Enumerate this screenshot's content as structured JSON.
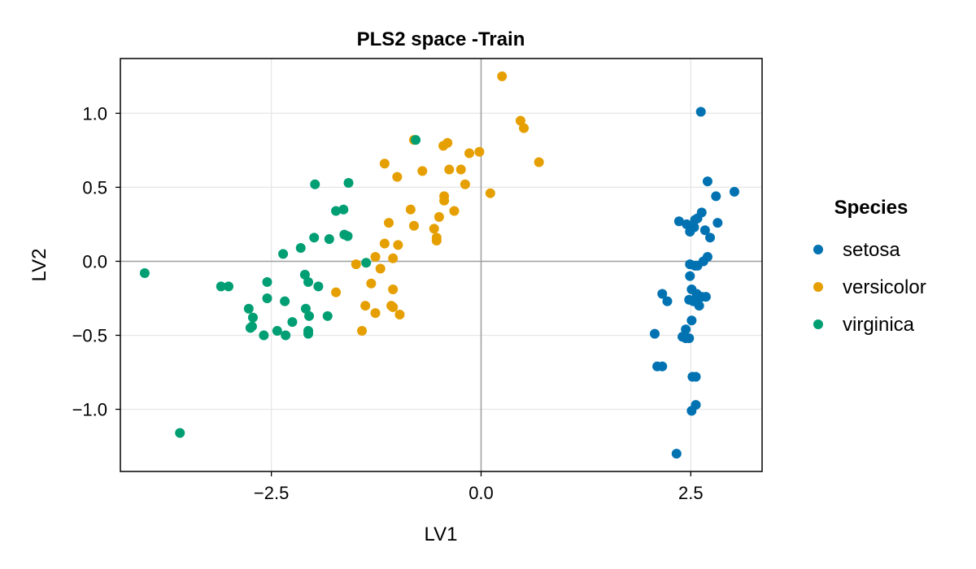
{
  "chart_data": {
    "type": "scatter",
    "title": "PLS2 space -Train",
    "xlabel": "LV1",
    "ylabel": "LV2",
    "xlim": [
      -4.3,
      3.35
    ],
    "ylim": [
      -1.42,
      1.37
    ],
    "xticks": [
      -2.5,
      0.0,
      2.5
    ],
    "xtick_labels": [
      "−2.5",
      "0.0",
      "2.5"
    ],
    "yticks": [
      -1.0,
      -0.5,
      0.0,
      0.5,
      1.0
    ],
    "ytick_labels": [
      "−1.0",
      "−0.5",
      "0.0",
      "0.5",
      "1.0"
    ],
    "grid": true,
    "zero_lines": true,
    "legend": {
      "title": "Species",
      "position": "right"
    },
    "series": [
      {
        "name": "setosa",
        "color": "#0072b2",
        "points": [
          [
            2.62,
            1.01
          ],
          [
            2.7,
            0.54
          ],
          [
            3.02,
            0.47
          ],
          [
            2.8,
            0.44
          ],
          [
            2.63,
            0.33
          ],
          [
            2.58,
            0.29
          ],
          [
            2.55,
            0.28
          ],
          [
            2.36,
            0.27
          ],
          [
            2.82,
            0.26
          ],
          [
            2.45,
            0.25
          ],
          [
            2.54,
            0.23
          ],
          [
            2.67,
            0.21
          ],
          [
            2.49,
            0.2
          ],
          [
            2.73,
            0.16
          ],
          [
            2.7,
            0.03
          ],
          [
            2.65,
            0.0
          ],
          [
            2.49,
            -0.02
          ],
          [
            2.55,
            -0.03
          ],
          [
            2.58,
            -0.03
          ],
          [
            2.49,
            -0.1
          ],
          [
            2.51,
            -0.19
          ],
          [
            2.16,
            -0.22
          ],
          [
            2.57,
            -0.22
          ],
          [
            2.63,
            -0.24
          ],
          [
            2.48,
            -0.26
          ],
          [
            2.22,
            -0.27
          ],
          [
            2.53,
            -0.27
          ],
          [
            2.58,
            -0.26
          ],
          [
            2.68,
            -0.24
          ],
          [
            2.6,
            -0.3
          ],
          [
            2.51,
            -0.4
          ],
          [
            2.44,
            -0.46
          ],
          [
            2.4,
            -0.51
          ],
          [
            2.48,
            -0.52
          ],
          [
            2.07,
            -0.49
          ],
          [
            2.44,
            -0.52
          ],
          [
            2.1,
            -0.71
          ],
          [
            2.16,
            -0.71
          ],
          [
            2.52,
            -0.78
          ],
          [
            2.56,
            -0.78
          ],
          [
            2.56,
            -0.97
          ],
          [
            2.51,
            -1.01
          ],
          [
            2.33,
            -1.3
          ]
        ]
      },
      {
        "name": "versicolor",
        "color": "#e69f00",
        "points": [
          [
            0.25,
            1.25
          ],
          [
            0.47,
            0.95
          ],
          [
            0.51,
            0.9
          ],
          [
            -0.8,
            0.82
          ],
          [
            -0.45,
            0.78
          ],
          [
            -0.4,
            0.8
          ],
          [
            -0.14,
            0.73
          ],
          [
            -0.02,
            0.74
          ],
          [
            0.69,
            0.67
          ],
          [
            -1.15,
            0.66
          ],
          [
            -0.7,
            0.61
          ],
          [
            -0.38,
            0.62
          ],
          [
            -0.24,
            0.62
          ],
          [
            -1.0,
            0.57
          ],
          [
            -0.19,
            0.52
          ],
          [
            0.11,
            0.46
          ],
          [
            -0.44,
            0.44
          ],
          [
            -0.44,
            0.41
          ],
          [
            -0.84,
            0.35
          ],
          [
            -0.32,
            0.34
          ],
          [
            -0.5,
            0.3
          ],
          [
            -1.1,
            0.26
          ],
          [
            -0.8,
            0.24
          ],
          [
            -0.56,
            0.22
          ],
          [
            -0.53,
            0.16
          ],
          [
            -0.53,
            0.14
          ],
          [
            -1.15,
            0.12
          ],
          [
            -0.99,
            0.11
          ],
          [
            -1.05,
            0.02
          ],
          [
            -1.26,
            0.03
          ],
          [
            -1.49,
            -0.02
          ],
          [
            -1.2,
            -0.05
          ],
          [
            -1.31,
            -0.15
          ],
          [
            -1.05,
            -0.19
          ],
          [
            -1.73,
            -0.21
          ],
          [
            -1.07,
            -0.3
          ],
          [
            -1.38,
            -0.3
          ],
          [
            -1.05,
            -0.31
          ],
          [
            -1.26,
            -0.35
          ],
          [
            -0.97,
            -0.36
          ],
          [
            -1.42,
            -0.47
          ]
        ]
      },
      {
        "name": "virginica",
        "color": "#009e73",
        "points": [
          [
            -0.78,
            0.82
          ],
          [
            -1.58,
            0.53
          ],
          [
            -1.98,
            0.52
          ],
          [
            -1.64,
            0.35
          ],
          [
            -1.73,
            0.34
          ],
          [
            -1.63,
            0.18
          ],
          [
            -1.59,
            0.17
          ],
          [
            -1.99,
            0.16
          ],
          [
            -1.81,
            0.15
          ],
          [
            -2.15,
            0.09
          ],
          [
            -2.36,
            0.05
          ],
          [
            -1.37,
            -0.01
          ],
          [
            -4.01,
            -0.08
          ],
          [
            -2.1,
            -0.09
          ],
          [
            -2.06,
            -0.14
          ],
          [
            -2.55,
            -0.14
          ],
          [
            -1.94,
            -0.17
          ],
          [
            -3.1,
            -0.17
          ],
          [
            -3.01,
            -0.17
          ],
          [
            -2.55,
            -0.25
          ],
          [
            -2.34,
            -0.27
          ],
          [
            -2.09,
            -0.32
          ],
          [
            -2.77,
            -0.32
          ],
          [
            -2.05,
            -0.37
          ],
          [
            -1.83,
            -0.37
          ],
          [
            -2.72,
            -0.38
          ],
          [
            -2.25,
            -0.41
          ],
          [
            -2.73,
            -0.44
          ],
          [
            -2.75,
            -0.45
          ],
          [
            -2.43,
            -0.47
          ],
          [
            -2.06,
            -0.47
          ],
          [
            -2.59,
            -0.5
          ],
          [
            -2.33,
            -0.5
          ],
          [
            -2.06,
            -0.49
          ],
          [
            -3.59,
            -1.16
          ]
        ]
      }
    ]
  }
}
